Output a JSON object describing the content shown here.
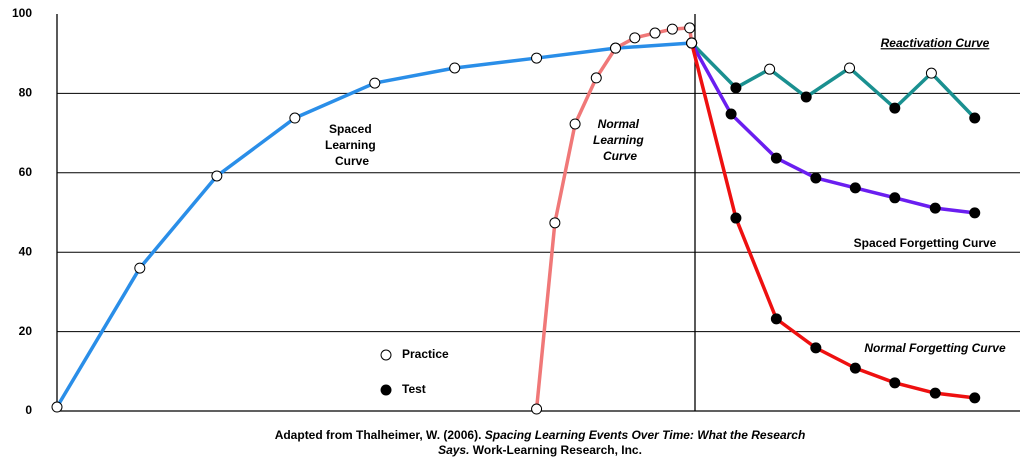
{
  "chart_data": {
    "type": "line",
    "xlim": [
      0,
      100
    ],
    "ylim": [
      0,
      100
    ],
    "yticks": [
      0,
      20,
      40,
      60,
      80,
      100
    ],
    "grid": true,
    "series": [
      {
        "name": "Spaced Learning Curve",
        "color": "#2a8ee8",
        "x": [
          0,
          8.6,
          16.6,
          24.7,
          33.0,
          41.3,
          49.8,
          58.0,
          65.9
        ],
        "values": [
          1,
          36,
          59.2,
          73.8,
          82.6,
          86.4,
          88.9,
          91.4,
          92.7
        ],
        "markers": [
          "open",
          "open",
          "open",
          "open",
          "open",
          "open",
          "open",
          "open",
          "open"
        ]
      },
      {
        "name": "Normal Learning Curve",
        "color": "#f07878",
        "x": [
          49.8,
          51.7,
          53.8,
          56.0,
          58.0,
          60.0,
          62.1,
          63.9,
          65.7,
          65.9
        ],
        "values": [
          0.5,
          47.4,
          72.3,
          83.9,
          91.4,
          94,
          95.2,
          96.2,
          96.5,
          92.7
        ],
        "markers": [
          "open",
          "open",
          "open",
          "open",
          "open",
          "open",
          "open",
          "open",
          "open",
          "open"
        ]
      },
      {
        "name": "Reactivation Curve",
        "color": "#1a9090",
        "x": [
          65.9,
          70.5,
          74.0,
          77.8,
          82.3,
          87.0,
          90.8,
          95.3
        ],
        "values": [
          92.7,
          81.4,
          86.1,
          79.1,
          86.4,
          76.3,
          85.1,
          73.8
        ],
        "markers": [
          "open",
          "filled",
          "open",
          "filled",
          "open",
          "filled",
          "open",
          "filled"
        ]
      },
      {
        "name": "Spaced Forgetting Curve",
        "color": "#6a1ef0",
        "x": [
          65.9,
          70.0,
          74.7,
          78.8,
          82.9,
          87.0,
          91.2,
          95.3
        ],
        "values": [
          92.7,
          74.8,
          63.7,
          58.7,
          56.2,
          53.7,
          51.1,
          49.9
        ],
        "markers": [
          "open",
          "filled",
          "filled",
          "filled",
          "filled",
          "filled",
          "filled",
          "filled"
        ]
      },
      {
        "name": "Normal Forgetting Curve",
        "color": "#ee1010",
        "x": [
          65.9,
          70.5,
          74.7,
          78.8,
          82.9,
          87.0,
          91.2,
          95.3
        ],
        "values": [
          92.7,
          48.6,
          23.2,
          15.9,
          10.8,
          7.1,
          4.5,
          3.3
        ],
        "markers": [
          "open",
          "filled",
          "filled",
          "filled",
          "filled",
          "filled",
          "filled",
          "filled"
        ]
      }
    ],
    "legend": [
      {
        "label": "Practice",
        "marker": "open"
      },
      {
        "label": "Test",
        "marker": "filled"
      }
    ],
    "caption": {
      "plain1": "Adapted from Thalheimer, W. (2006).",
      "italic1": "Spacing Learning Events Over Time: What the Research",
      "italic2": "Says.",
      "plain2": "Work-Learning Research, Inc."
    }
  }
}
